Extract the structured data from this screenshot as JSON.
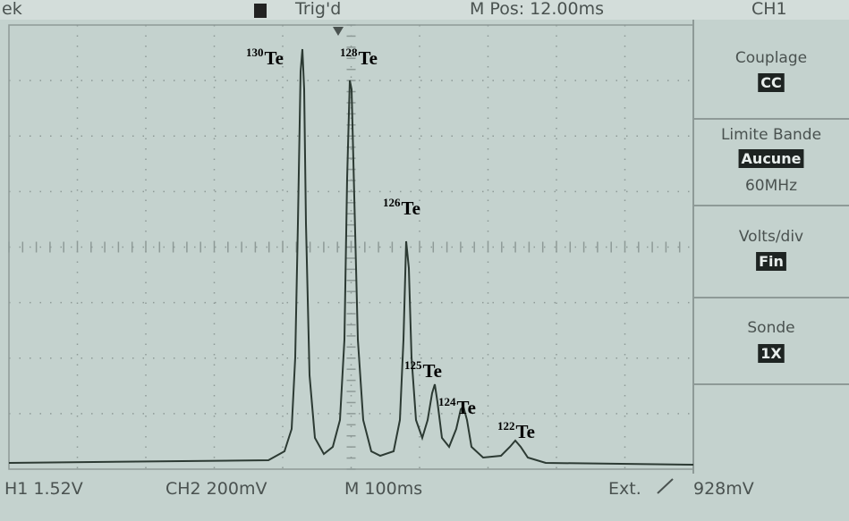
{
  "header": {
    "left": "ek",
    "trigger_status": "Trig'd",
    "position": "M Pos: 12.00ms",
    "channel": "CH1"
  },
  "menu": [
    {
      "title": "Couplage",
      "selected": "CC"
    },
    {
      "title": "Limite Bande",
      "selected": "Aucune",
      "option": "60MHz"
    },
    {
      "title": "Volts/div",
      "selected": "Fin"
    },
    {
      "title": "Sonde",
      "selected": "1X"
    }
  ],
  "footer": {
    "ch1": "H1 1.52V",
    "ch2": "CH2 200mV",
    "timebase": "M 100ms",
    "trigger_source": "Ext.",
    "trigger_level": "928mV"
  },
  "peaks": [
    {
      "mass": "130",
      "element": "Te"
    },
    {
      "mass": "128",
      "element": "Te"
    },
    {
      "mass": "126",
      "element": "Te"
    },
    {
      "mass": "125",
      "element": "Te"
    },
    {
      "mass": "124",
      "element": "Te"
    },
    {
      "mass": "122",
      "element": "Te"
    }
  ]
}
